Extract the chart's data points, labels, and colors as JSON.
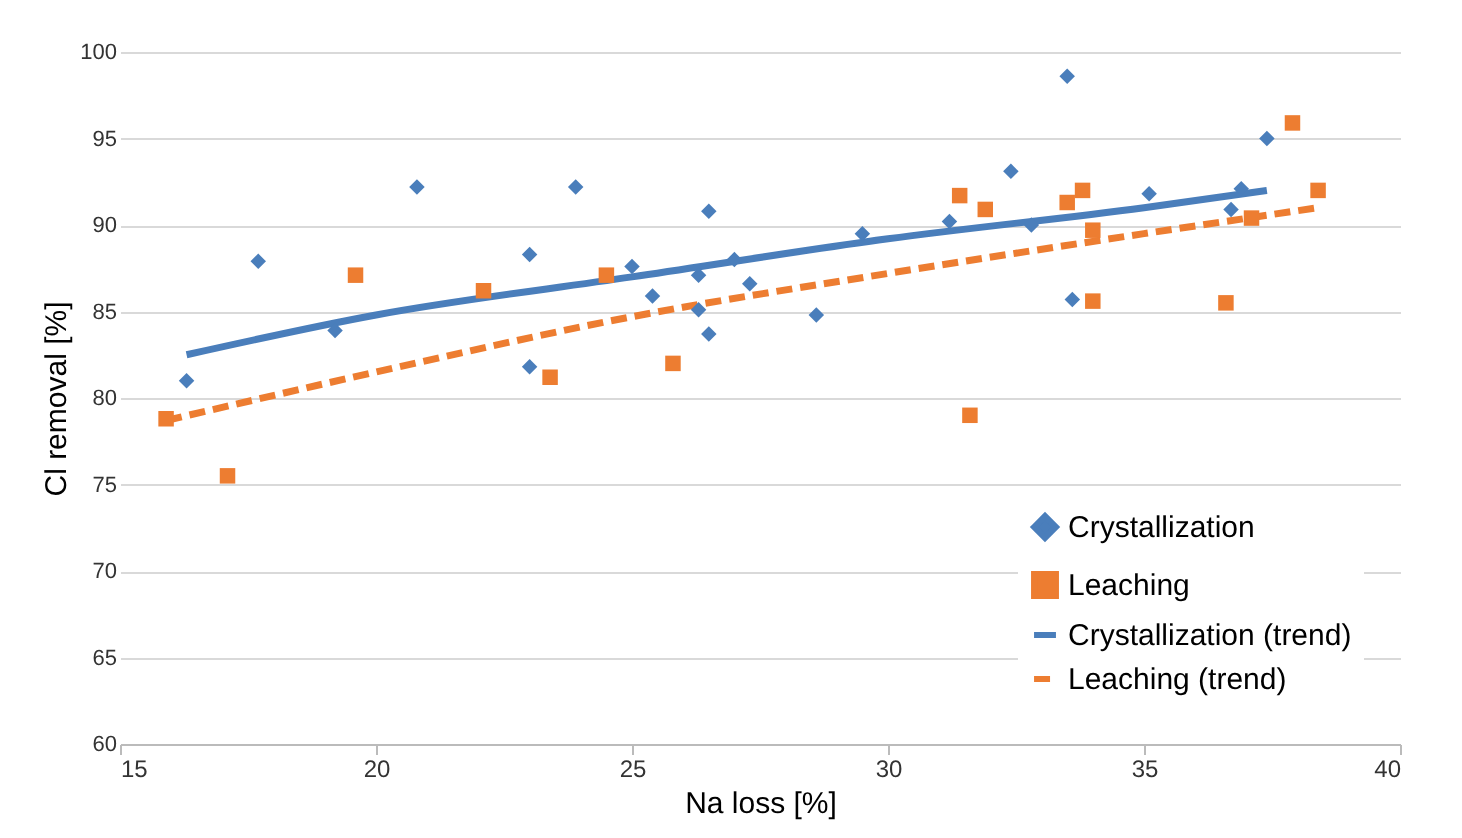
{
  "chart_data": {
    "type": "scatter",
    "xlabel": "Na loss [%]",
    "ylabel": "Cl removal [%]",
    "xlim": [
      15,
      40
    ],
    "ylim": [
      60,
      100
    ],
    "xticks": [
      15,
      20,
      25,
      30,
      35,
      40
    ],
    "yticks": [
      60,
      65,
      70,
      75,
      80,
      85,
      90,
      95,
      100
    ],
    "grid": "y",
    "legend": "bottom right",
    "series": [
      {
        "name": "Crystallization",
        "type": "scatter",
        "marker": "diamond",
        "color": "#4a7ebb",
        "x": [
          16.3,
          17.7,
          19.2,
          20.8,
          23.0,
          23.0,
          23.9,
          25.0,
          25.4,
          26.3,
          26.3,
          26.5,
          26.5,
          27.0,
          27.3,
          28.6,
          29.5,
          31.2,
          32.4,
          32.8,
          33.5,
          33.6,
          35.1,
          36.7,
          36.9,
          37.4
        ],
        "values": [
          81.0,
          87.9,
          83.9,
          92.2,
          88.3,
          81.8,
          92.2,
          87.6,
          85.9,
          87.1,
          85.1,
          90.8,
          83.7,
          88.0,
          86.6,
          84.8,
          89.5,
          90.2,
          93.1,
          90.0,
          98.6,
          85.7,
          91.8,
          90.9,
          92.1,
          95.0
        ]
      },
      {
        "name": "Leaching",
        "type": "scatter",
        "marker": "square",
        "color": "#ed7d31",
        "x": [
          15.9,
          17.1,
          19.6,
          22.1,
          23.4,
          24.5,
          25.8,
          31.4,
          31.6,
          31.9,
          33.5,
          33.8,
          34.0,
          34.0,
          36.6,
          37.1,
          37.9,
          38.4
        ],
        "values": [
          78.8,
          75.5,
          87.1,
          86.2,
          81.2,
          87.1,
          82.0,
          91.7,
          79.0,
          90.9,
          91.3,
          92.0,
          89.7,
          85.6,
          85.5,
          90.4,
          95.9,
          92.0
        ]
      },
      {
        "name": "Crystallization (trend)",
        "type": "line",
        "line_style": "solid",
        "color": "#4a7ebb",
        "x": [
          16.3,
          20,
          25,
          30,
          35,
          37.4
        ],
        "values": [
          82.5,
          84.8,
          87.0,
          89.2,
          91.0,
          92.0
        ]
      },
      {
        "name": "Leaching (trend)",
        "type": "line",
        "line_style": "dashed",
        "color": "#ed7d31",
        "x": [
          15.9,
          20,
          25,
          30,
          35,
          38.4
        ],
        "values": [
          78.7,
          81.5,
          84.7,
          87.2,
          89.5,
          91.0
        ]
      }
    ]
  }
}
